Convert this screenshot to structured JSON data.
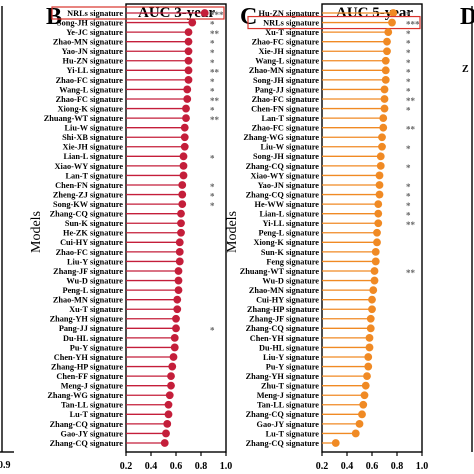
{
  "figure": {
    "left_fragment": {
      "tick": "0.9"
    },
    "right_fragment": {
      "letter": "D",
      "stub_label": "Z"
    }
  },
  "chart_data": [
    {
      "type": "lollipop",
      "panel": "B",
      "title": "AUC  3-year",
      "ylabel": "Models",
      "xlim": [
        0.2,
        1.0
      ],
      "xticks": [
        "0.2",
        "0.4",
        "0.6",
        "0.8",
        "1.0"
      ],
      "color": "#c41e3a",
      "highlighted": [
        "NRLs signature"
      ],
      "categories": [
        "NRLs signature",
        "Song-JH signature",
        "Ye-JC signature",
        "Zhao-MN signature",
        "Yao-JN signature",
        "Hu-ZN signature",
        "Yi-LL signature",
        "Zhao-FC signature",
        "Wang-L signature",
        "Zhao-FC signature",
        "Xiong-K signature",
        "Zhuang-WT signature",
        "Liu-W signature",
        "Shi-XB signature",
        "Xie-JH signature",
        "Lian-L signature",
        "Xiao-WY signature",
        "Lan-T signature",
        "Chen-FN signature",
        "Zheng-ZJ signature",
        "Song-KW signature",
        "Zhang-CQ signature",
        "Sun-K signature",
        "He-ZK signature",
        "Cui-HY signature",
        "Zhao-FC signature",
        "Liu-Y signature",
        "Zhang-JF signature",
        "Wu-D signature",
        "Peng-L signature",
        "Zhao-MN signature",
        "Xu-T signature",
        "Zhang-YH signature",
        "Pang-JJ signature",
        "Du-HL signature",
        "Pu-Y signature",
        "Chen-YH signature",
        "Zhang-HP signature",
        "Chen-FF signature",
        "Meng-J signature",
        "Zhang-WG signature",
        "Tan-LL signature",
        "Lu-T signature",
        "Zhang-CQ signature",
        "Gao-JY signature",
        "Zhang-CQ signature"
      ],
      "values": [
        0.83,
        0.73,
        0.7,
        0.7,
        0.7,
        0.7,
        0.7,
        0.7,
        0.69,
        0.69,
        0.68,
        0.68,
        0.67,
        0.67,
        0.67,
        0.66,
        0.66,
        0.66,
        0.65,
        0.65,
        0.65,
        0.64,
        0.64,
        0.64,
        0.63,
        0.63,
        0.63,
        0.62,
        0.62,
        0.62,
        0.61,
        0.61,
        0.6,
        0.6,
        0.59,
        0.59,
        0.58,
        0.57,
        0.56,
        0.56,
        0.55,
        0.54,
        0.54,
        0.53,
        0.52,
        0.51
      ],
      "stars": [
        "***",
        "*",
        "**",
        "*",
        "*",
        "*",
        "**",
        "*",
        "*",
        "**",
        "*",
        "**",
        "",
        "",
        "",
        "*",
        "",
        "",
        "*",
        "*",
        "*",
        "",
        "",
        "",
        "",
        "",
        "",
        "",
        "",
        "",
        "",
        "",
        "",
        "*",
        "",
        "",
        "",
        "",
        "",
        "",
        "",
        "",
        "",
        "",
        "",
        ""
      ]
    },
    {
      "type": "lollipop",
      "panel": "C",
      "title": "AUC  5-year",
      "ylabel": "Models",
      "xlim": [
        0.2,
        1.0
      ],
      "xticks": [
        "0.2",
        "0.4",
        "0.6",
        "0.8",
        "1.0"
      ],
      "color": "#f08a24",
      "highlighted": [
        "NRLs signature"
      ],
      "categories": [
        "Hu-ZN signature",
        "NRLs signature",
        "Xu-T signature",
        "Zhao-FC signature",
        "Xie-JH signature",
        "Wang-L signature",
        "Zhao-MN signature",
        "Song-JH signature",
        "Pang-JJ signature",
        "Zhao-FC signature",
        "Chen-FN signature",
        "Lan-T signature",
        "Zhao-FC signature",
        "Zhang-WG signature",
        "Liu-W signature",
        "Song-JH signature",
        "Zhang-CQ signature",
        "Xiao-WY signature",
        "Yao-JN signature",
        "Zhang-CQ signature",
        "He-WW signature",
        "Lian-L signature",
        "Yi-LL signature",
        "Peng-L signature",
        "Xiong-K signature",
        "Sun-K signature",
        "Feng signature",
        "Zhuang-WT signature",
        "Wu-D signature",
        "Zhao-MN signature",
        "Cui-HY signature",
        "Zhang-HP signature",
        "Zhang-JF signature",
        "Zhang-CQ signature",
        "Chen-YH signature",
        "Du-HL signature",
        "Liu-Y signature",
        "Pu-Y signature",
        "Zhang-YH signature",
        "Zhu-T signature",
        "Meng-J signature",
        "Tan-LL signature",
        "Zhang-CQ signature",
        "Gao-JY signature",
        "Lu-T signature",
        "Zhang-CQ signature"
      ],
      "values": [
        0.77,
        0.76,
        0.73,
        0.72,
        0.72,
        0.71,
        0.71,
        0.71,
        0.7,
        0.7,
        0.7,
        0.69,
        0.69,
        0.68,
        0.68,
        0.67,
        0.67,
        0.66,
        0.66,
        0.66,
        0.65,
        0.65,
        0.65,
        0.64,
        0.64,
        0.63,
        0.63,
        0.62,
        0.62,
        0.61,
        0.6,
        0.6,
        0.59,
        0.59,
        0.58,
        0.58,
        0.57,
        0.57,
        0.56,
        0.55,
        0.54,
        0.53,
        0.52,
        0.5,
        0.47,
        0.31
      ],
      "stars": [
        "*",
        "***",
        "*",
        "*",
        "*",
        "*",
        "*",
        "*",
        "*",
        "**",
        "*",
        "",
        "**",
        "",
        "*",
        "",
        "*",
        "",
        "*",
        "*",
        "*",
        "*",
        "**",
        "",
        "",
        "",
        "",
        "**",
        "",
        "",
        "",
        "",
        "",
        "",
        "",
        "",
        "",
        "",
        "",
        "",
        "",
        "",
        "",
        "",
        "",
        ""
      ]
    }
  ]
}
